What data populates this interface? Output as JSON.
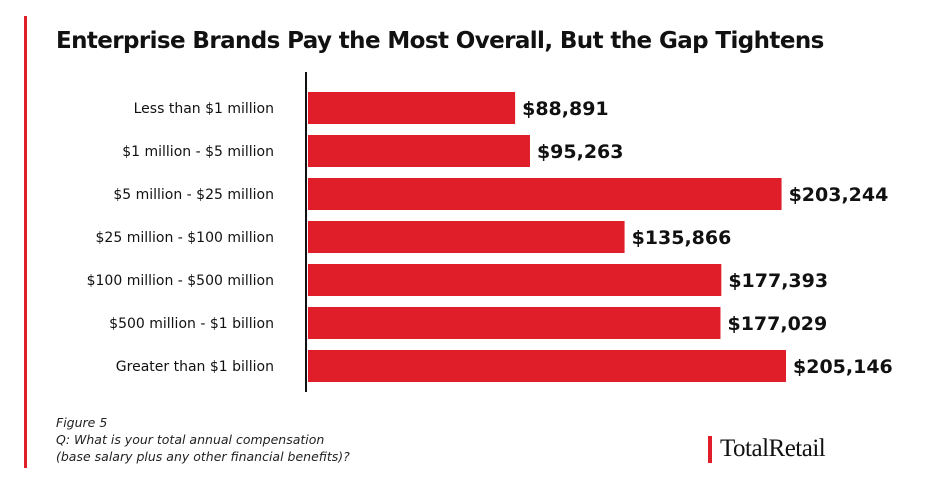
{
  "title": "Enterprise Brands Pay the Most Overall, But the Gap Tightens",
  "footnote": {
    "figure": "Figure 5",
    "question_line1": "Q: What is your total annual compensation",
    "question_line2": "(base salary plus any other financial benefits)?"
  },
  "logo": {
    "name": "TotalRetail"
  },
  "colors": {
    "bar": "#e01e2a",
    "accent": "#e01e2a",
    "axis": "#111111",
    "text": "#111111"
  },
  "chart_data": {
    "type": "bar",
    "orientation": "horizontal",
    "title": "Enterprise Brands Pay the Most Overall, But the Gap Tightens",
    "xlabel": "",
    "ylabel": "",
    "grid": false,
    "xlim": [
      0,
      205146
    ],
    "categories": [
      "Less than $1 million",
      "$1 million - $5 million",
      "$5 million - $25 million",
      "$25 million - $100 million",
      "$100 million - $500 million",
      "$500 million - $1 billion",
      "Greater than $1 billion"
    ],
    "values": [
      88891,
      95263,
      203244,
      135866,
      177393,
      177029,
      205146
    ],
    "data_labels": [
      "$88,891",
      "$95,263",
      "$203,244",
      "$135,866",
      "$177,393",
      "$177,029",
      "$205,146"
    ]
  }
}
